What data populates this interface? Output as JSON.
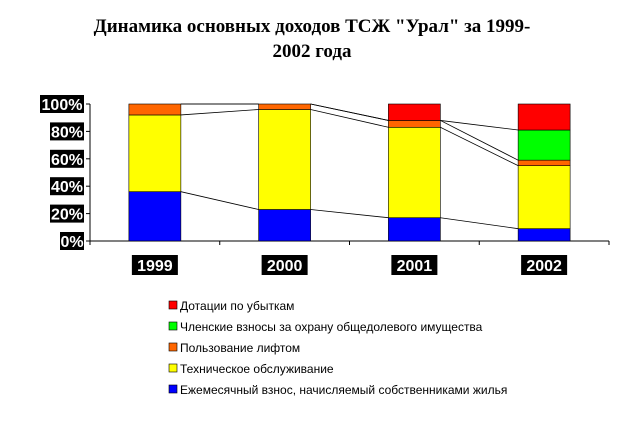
{
  "chart_data": {
    "type": "bar",
    "stacked": true,
    "percent": true,
    "title_lines": [
      "Динамика основных доходов ТСЖ \"Урал\" за 1999-",
      "2002 года"
    ],
    "categories": [
      "1999",
      "2000",
      "2001",
      "2002"
    ],
    "ylim": [
      0,
      100
    ],
    "yticks": [
      "0%",
      "20%",
      "40%",
      "60%",
      "80%",
      "100%"
    ],
    "grid": false,
    "series_lines": true,
    "legend_position": "bottom",
    "series": [
      {
        "name": "Ежемесячный взнос, начисляемый собственниками жилья",
        "color": "#0000ff",
        "values": [
          36,
          23,
          17,
          9
        ]
      },
      {
        "name": "Техническое обслуживание",
        "color": "#ffff00",
        "values": [
          56,
          73,
          66,
          46
        ]
      },
      {
        "name": "Пользование лифтом",
        "color": "#ff6600",
        "values": [
          8,
          4,
          5,
          4
        ]
      },
      {
        "name": "Членские взносы за охрану общедолевого имущества",
        "color": "#00ff00",
        "values": [
          0,
          0,
          0,
          22
        ]
      },
      {
        "name": "Дотации по убыткам",
        "color": "#ff0000",
        "values": [
          0,
          0,
          12,
          19
        ]
      }
    ]
  }
}
